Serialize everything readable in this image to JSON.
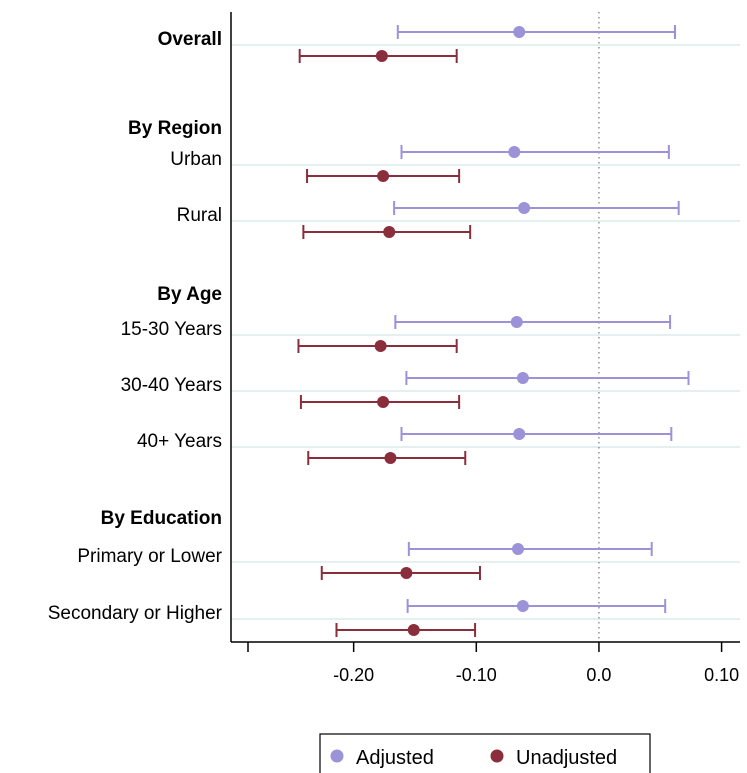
{
  "chart_data": {
    "type": "scatter",
    "subtype": "forest-plot",
    "title": "",
    "xlabel": "",
    "ylabel": "",
    "xlim": [
      -0.3,
      0.115
    ],
    "xticks": [
      -0.2,
      -0.1,
      0.0,
      0.1
    ],
    "xtick_labels": [
      "-0.20",
      "-0.10",
      "0.0",
      "0.10"
    ],
    "reference_line": 0.0,
    "grid": "horizontal",
    "colors": {
      "Adjusted": "#9b92d8",
      "Unadjusted": "#8b2e3c",
      "grid": "#e6eff0"
    },
    "legend": {
      "position": "bottom",
      "entries": [
        "Adjusted",
        "Unadjusted"
      ]
    },
    "rows": [
      {
        "label": "Overall",
        "heading": true,
        "values": {
          "Adjusted": [
            -0.065,
            -0.164,
            0.062
          ],
          "Unadjusted": [
            -0.177,
            -0.244,
            -0.116
          ]
        }
      },
      {
        "label": "By Region",
        "heading": true,
        "values": null
      },
      {
        "label": "Urban",
        "heading": false,
        "values": {
          "Adjusted": [
            -0.069,
            -0.161,
            0.057
          ],
          "Unadjusted": [
            -0.176,
            -0.238,
            -0.114
          ]
        }
      },
      {
        "label": "Rural",
        "heading": false,
        "values": {
          "Adjusted": [
            -0.061,
            -0.167,
            0.065
          ],
          "Unadjusted": [
            -0.171,
            -0.241,
            -0.105
          ]
        }
      },
      {
        "label": "By Age",
        "heading": true,
        "values": null
      },
      {
        "label": "15-30 Years",
        "heading": false,
        "values": {
          "Adjusted": [
            -0.067,
            -0.166,
            0.058
          ],
          "Unadjusted": [
            -0.178,
            -0.245,
            -0.116
          ]
        }
      },
      {
        "label": "30-40 Years",
        "heading": false,
        "values": {
          "Adjusted": [
            -0.062,
            -0.157,
            0.073
          ],
          "Unadjusted": [
            -0.176,
            -0.243,
            -0.114
          ]
        }
      },
      {
        "label": "40+ Years",
        "heading": false,
        "values": {
          "Adjusted": [
            -0.065,
            -0.161,
            0.059
          ],
          "Unadjusted": [
            -0.17,
            -0.237,
            -0.109
          ]
        }
      },
      {
        "label": "By Education",
        "heading": true,
        "values": null
      },
      {
        "label": "Primary or Lower",
        "heading": false,
        "values": {
          "Adjusted": [
            -0.066,
            -0.155,
            0.043
          ],
          "Unadjusted": [
            -0.157,
            -0.226,
            -0.097
          ]
        }
      },
      {
        "label": "Secondary or Higher",
        "heading": false,
        "values": {
          "Adjusted": [
            -0.062,
            -0.156,
            0.054
          ],
          "Unadjusted": [
            -0.151,
            -0.214,
            -0.101
          ]
        }
      }
    ]
  }
}
